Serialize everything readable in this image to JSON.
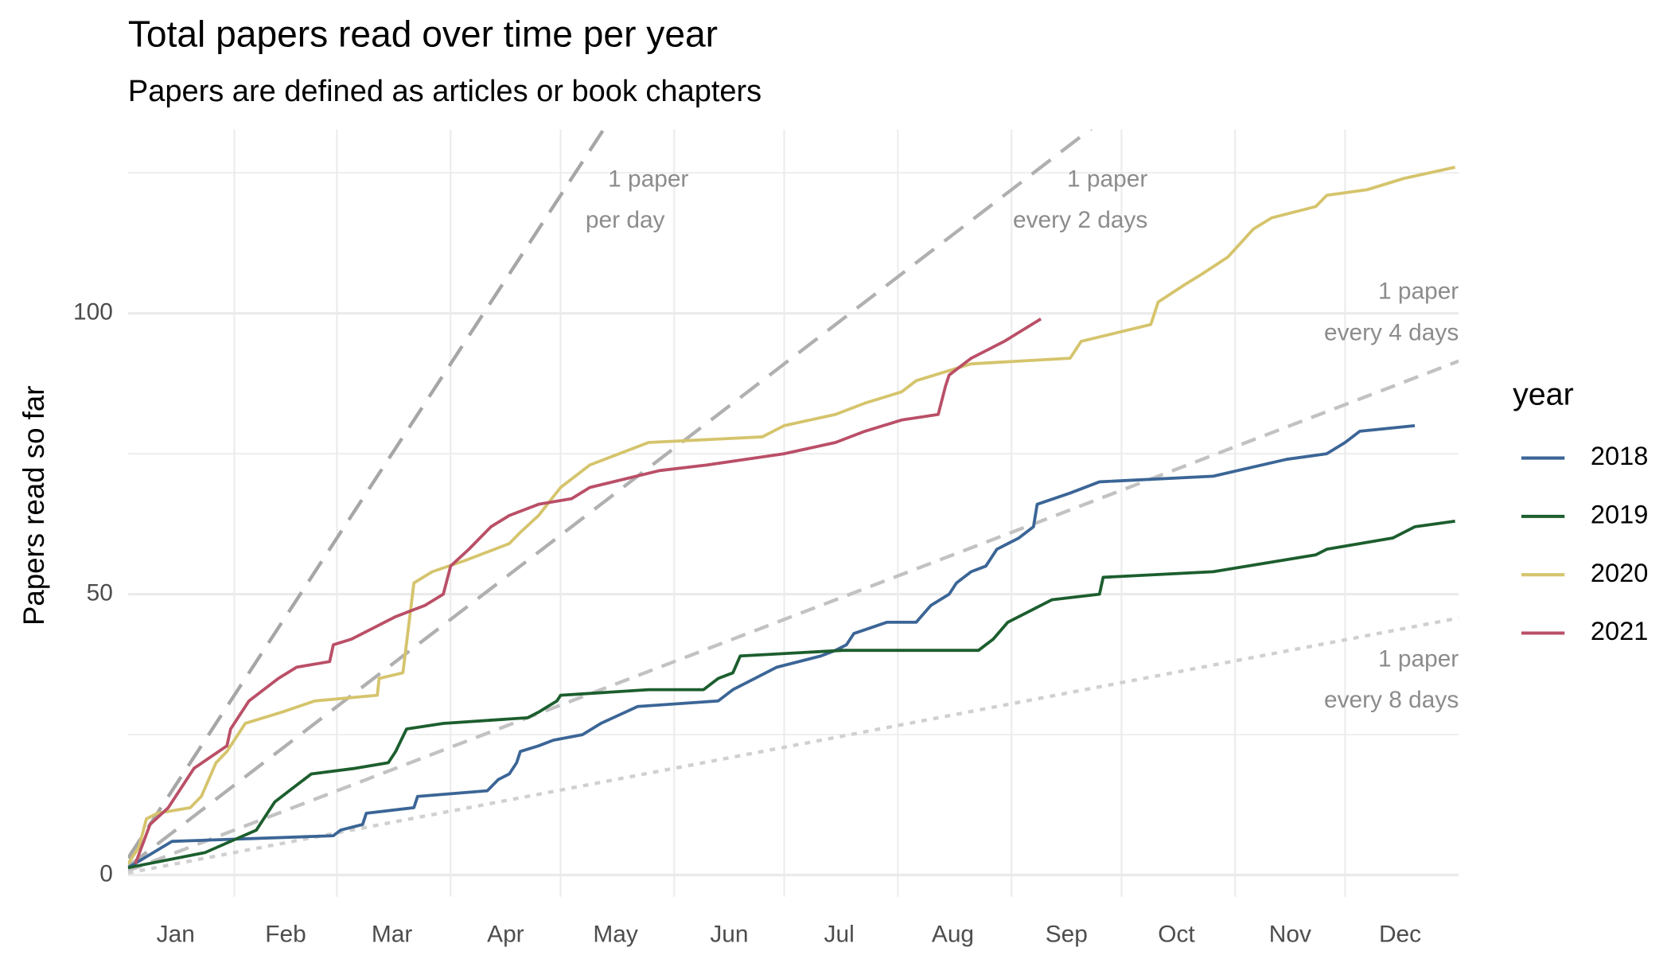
{
  "chart_data": {
    "type": "line",
    "title": "Total papers read over time per year",
    "subtitle": "Papers are defined as articles or book chapters",
    "y_label": "Papers read so far",
    "legend_title": "year",
    "legend_position": "right",
    "grid": true,
    "xlim": [
      3,
      366
    ],
    "ylim": [
      -3.85,
      132.7
    ],
    "xticks": [
      {
        "value": 16,
        "label": "Jan"
      },
      {
        "value": 46,
        "label": "Feb"
      },
      {
        "value": 75,
        "label": "Mar"
      },
      {
        "value": 106,
        "label": "Apr"
      },
      {
        "value": 136,
        "label": "May"
      },
      {
        "value": 167,
        "label": "Jun"
      },
      {
        "value": 197,
        "label": "Jul"
      },
      {
        "value": 228,
        "label": "Aug"
      },
      {
        "value": 259,
        "label": "Sep"
      },
      {
        "value": 289,
        "label": "Oct"
      },
      {
        "value": 320,
        "label": "Nov"
      },
      {
        "value": 350,
        "label": "Dec"
      }
    ],
    "x_grid": [
      32,
      60,
      91,
      121,
      152,
      182,
      213,
      244,
      274,
      305,
      335
    ],
    "yticks": [
      0,
      50,
      100
    ],
    "y_minor_grid": [
      25,
      75,
      125
    ],
    "reference_lines": [
      {
        "slope": 1,
        "label": [
          "1 paper",
          "per day"
        ],
        "color": "#a6a6a6",
        "linetype": "longdash"
      },
      {
        "slope": 0.5,
        "label": [
          "1 paper",
          "every 2 days"
        ],
        "color": "#b0b0b0",
        "linetype": "longdash"
      },
      {
        "slope": 0.25,
        "label": [
          "1 paper",
          "every 4 days"
        ],
        "color": "#c2c2c2",
        "linetype": "dashed"
      },
      {
        "slope": 0.125,
        "label": [
          "1 paper",
          "every 8 days"
        ],
        "color": "#d0d0d0",
        "linetype": "dotted"
      }
    ],
    "series": [
      {
        "name": "2018",
        "color": "#3b6596",
        "x": [
          3,
          15,
          59,
          61,
          67,
          68,
          81,
          82,
          101,
          104,
          107,
          109,
          110,
          115,
          119,
          127,
          132,
          142,
          164,
          168,
          174,
          180,
          192,
          196,
          199,
          201,
          210,
          218,
          222,
          227,
          229,
          233,
          237,
          240,
          246,
          250,
          251,
          260,
          268,
          299,
          319,
          330,
          335,
          339,
          354
        ],
        "values": [
          1.3,
          6,
          7,
          8,
          9,
          11,
          12,
          14,
          15,
          17,
          18,
          20,
          22,
          23,
          24,
          25,
          27,
          30,
          31,
          33,
          35,
          37,
          39,
          40,
          41,
          43,
          45,
          45,
          48,
          50,
          52,
          54,
          55,
          58,
          60,
          62,
          66,
          68,
          70,
          71,
          74,
          75,
          77,
          79,
          80
        ]
      },
      {
        "name": "2019",
        "color": "#1c5e2e",
        "x": [
          3,
          24,
          31,
          38,
          43,
          47,
          53,
          65,
          74,
          76,
          79,
          89,
          112,
          115,
          120,
          121,
          145,
          160,
          164,
          168,
          170,
          198,
          235,
          239,
          243,
          249,
          255,
          268,
          269,
          299,
          327,
          330,
          348,
          354,
          365
        ],
        "values": [
          1.3,
          4,
          6,
          8,
          13,
          15,
          18,
          19,
          20,
          22,
          26,
          27,
          28,
          29,
          31,
          32,
          33,
          33,
          35,
          36,
          39,
          40,
          40,
          42,
          45,
          47,
          49,
          50,
          53,
          54,
          57,
          58,
          60,
          62,
          63
        ]
      },
      {
        "name": "2020",
        "color": "#d5c46c",
        "x": [
          3,
          6,
          8,
          11,
          20,
          23,
          27,
          30,
          33,
          35,
          45,
          54,
          71,
          71.5,
          78,
          81,
          86,
          95,
          107,
          110,
          115,
          121,
          129,
          145,
          176,
          182,
          196,
          204,
          214,
          218,
          233,
          260,
          263,
          282,
          284,
          291,
          296,
          303,
          310,
          315,
          327,
          330,
          341,
          351,
          365
        ],
        "values": [
          2,
          5,
          10,
          11,
          12,
          14,
          20,
          22,
          25,
          27,
          29,
          31,
          32,
          35,
          36,
          52,
          54,
          56,
          59,
          61,
          64,
          69,
          73,
          77,
          78,
          80,
          82,
          84,
          86,
          88,
          91,
          92,
          95,
          98,
          102,
          105,
          107,
          110,
          115,
          117,
          119,
          121,
          122,
          124,
          126
        ]
      },
      {
        "name": "2021",
        "color": "#ba4f67",
        "x": [
          5,
          9,
          14,
          21,
          30,
          31,
          36,
          44,
          49,
          58,
          59,
          64,
          76,
          84,
          89,
          91,
          96,
          102,
          107,
          115,
          124,
          129,
          148,
          161,
          182,
          196,
          204,
          214,
          224,
          226,
          227,
          233,
          242,
          252
        ],
        "values": [
          2,
          9,
          12,
          19,
          23,
          26,
          31,
          35,
          37,
          38,
          41,
          42,
          46,
          48,
          50,
          55,
          58,
          62,
          64,
          66,
          67,
          69,
          72,
          73,
          75,
          77,
          79,
          81,
          82,
          87,
          89,
          92,
          95,
          99
        ]
      }
    ]
  }
}
